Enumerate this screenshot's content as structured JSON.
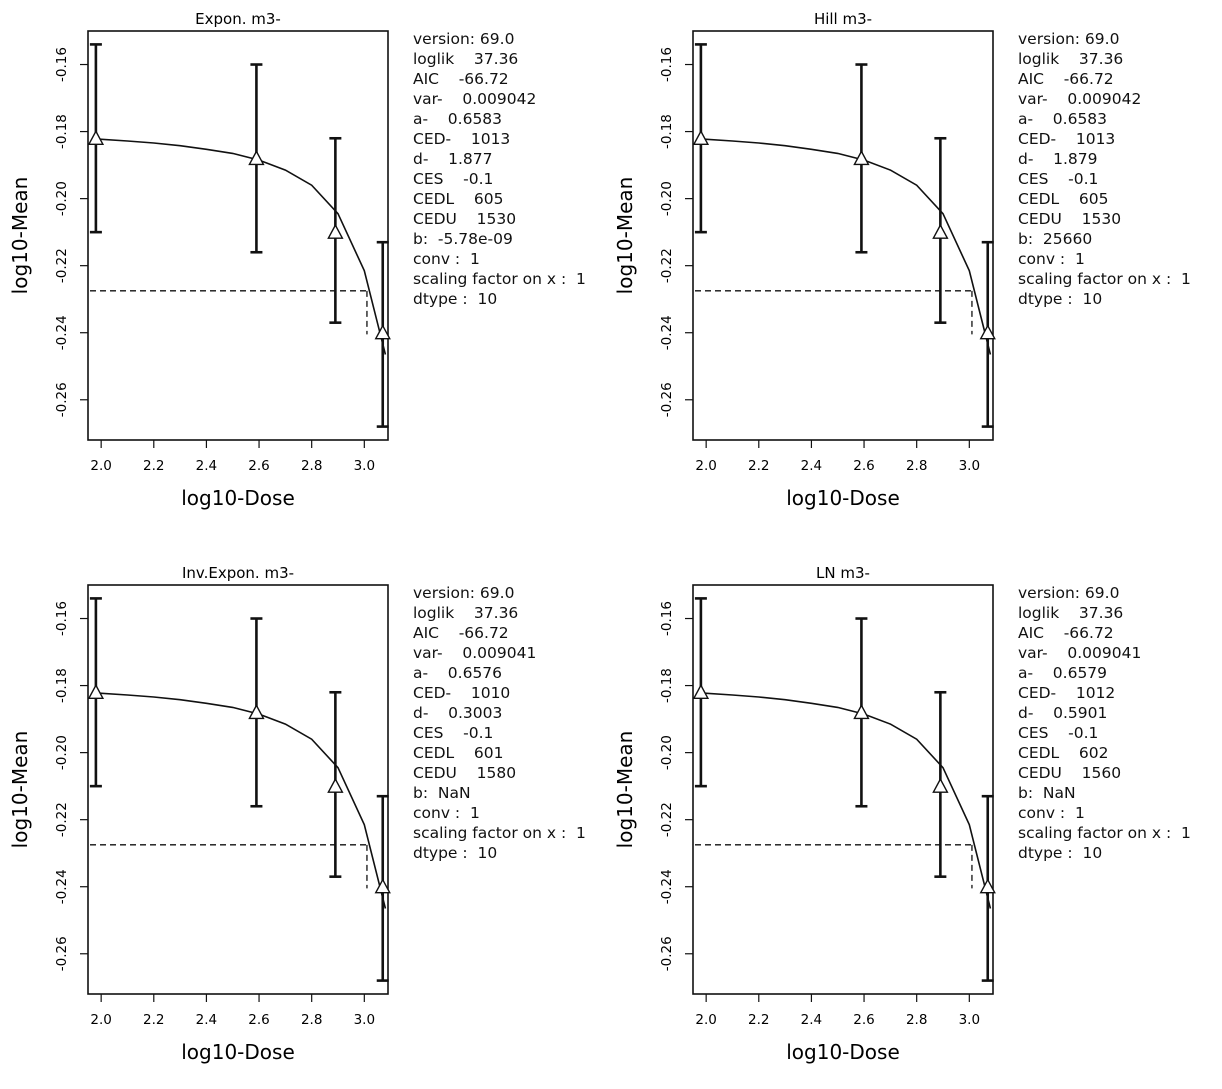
{
  "chart_data": [
    {
      "type": "line",
      "title": "Expon. m3-",
      "xlabel": "log10-Dose",
      "ylabel": "log10-Mean",
      "xlim": [
        1.95,
        3.09
      ],
      "ylim": [
        -0.272,
        -0.15
      ],
      "xticks": [
        "2.0",
        "2.2",
        "2.4",
        "2.6",
        "2.8",
        "3.0"
      ],
      "yticks": [
        "-0.16",
        "-0.18",
        "-0.20",
        "-0.22",
        "-0.24",
        "-0.26"
      ],
      "points": {
        "x": [
          1.98,
          2.59,
          2.89,
          3.07
        ],
        "y": [
          -0.182,
          -0.188,
          -0.21,
          -0.24
        ],
        "lower": [
          -0.21,
          -0.216,
          -0.237,
          -0.268
        ],
        "upper": [
          -0.154,
          -0.16,
          -0.182,
          -0.213
        ]
      },
      "curve": {
        "x": [
          1.98,
          2.1,
          2.2,
          2.3,
          2.4,
          2.5,
          2.6,
          2.7,
          2.8,
          2.9,
          3.0,
          3.08
        ],
        "y": [
          -0.1822,
          -0.1828,
          -0.1834,
          -0.1842,
          -0.1853,
          -0.1865,
          -0.1885,
          -0.1915,
          -0.196,
          -0.2045,
          -0.2215,
          -0.2465
        ]
      },
      "ced_line": {
        "y": -0.2275,
        "x": 3.01
      },
      "info": [
        "version: 69.0",
        "loglik    37.36",
        "AIC    -66.72",
        "var-    0.009042",
        "a-    0.6583",
        "CED-    1013",
        "d-    1.877",
        "CES    -0.1",
        "CEDL    605",
        "CEDU    1530",
        "b:  -5.78e-09",
        "conv :  1",
        "scaling factor on x :  1",
        "dtype :  10"
      ]
    },
    {
      "type": "line",
      "title": "Hill m3-",
      "xlabel": "log10-Dose",
      "ylabel": "log10-Mean",
      "xlim": [
        1.95,
        3.09
      ],
      "ylim": [
        -0.272,
        -0.15
      ],
      "xticks": [
        "2.0",
        "2.2",
        "2.4",
        "2.6",
        "2.8",
        "3.0"
      ],
      "yticks": [
        "-0.16",
        "-0.18",
        "-0.20",
        "-0.22",
        "-0.24",
        "-0.26"
      ],
      "points": {
        "x": [
          1.98,
          2.59,
          2.89,
          3.07
        ],
        "y": [
          -0.182,
          -0.188,
          -0.21,
          -0.24
        ],
        "lower": [
          -0.21,
          -0.216,
          -0.237,
          -0.268
        ],
        "upper": [
          -0.154,
          -0.16,
          -0.182,
          -0.213
        ]
      },
      "curve": {
        "x": [
          1.98,
          2.1,
          2.2,
          2.3,
          2.4,
          2.5,
          2.6,
          2.7,
          2.8,
          2.9,
          3.0,
          3.08
        ],
        "y": [
          -0.1822,
          -0.1828,
          -0.1834,
          -0.1842,
          -0.1853,
          -0.1865,
          -0.1885,
          -0.1915,
          -0.196,
          -0.2045,
          -0.2215,
          -0.2465
        ]
      },
      "ced_line": {
        "y": -0.2275,
        "x": 3.01
      },
      "info": [
        "version: 69.0",
        "loglik    37.36",
        "AIC    -66.72",
        "var-    0.009042",
        "a-    0.6583",
        "CED-    1013",
        "d-    1.879",
        "CES    -0.1",
        "CEDL    605",
        "CEDU    1530",
        "b:  25660",
        "conv :  1",
        "scaling factor on x :  1",
        "dtype :  10"
      ]
    },
    {
      "type": "line",
      "title": "Inv.Expon. m3-",
      "xlabel": "log10-Dose",
      "ylabel": "log10-Mean",
      "xlim": [
        1.95,
        3.09
      ],
      "ylim": [
        -0.272,
        -0.15
      ],
      "xticks": [
        "2.0",
        "2.2",
        "2.4",
        "2.6",
        "2.8",
        "3.0"
      ],
      "yticks": [
        "-0.16",
        "-0.18",
        "-0.20",
        "-0.22",
        "-0.24",
        "-0.26"
      ],
      "points": {
        "x": [
          1.98,
          2.59,
          2.89,
          3.07
        ],
        "y": [
          -0.182,
          -0.188,
          -0.21,
          -0.24
        ],
        "lower": [
          -0.21,
          -0.216,
          -0.237,
          -0.268
        ],
        "upper": [
          -0.154,
          -0.16,
          -0.182,
          -0.213
        ]
      },
      "curve": {
        "x": [
          1.98,
          2.1,
          2.2,
          2.3,
          2.4,
          2.5,
          2.6,
          2.7,
          2.8,
          2.9,
          3.0,
          3.08
        ],
        "y": [
          -0.1822,
          -0.1828,
          -0.1834,
          -0.1842,
          -0.1853,
          -0.1865,
          -0.1885,
          -0.1915,
          -0.196,
          -0.2045,
          -0.2215,
          -0.2465
        ]
      },
      "ced_line": {
        "y": -0.2275,
        "x": 3.01
      },
      "info": [
        "version: 69.0",
        "loglik    37.36",
        "AIC    -66.72",
        "var-    0.009041",
        "a-    0.6576",
        "CED-    1010",
        "d-    0.3003",
        "CES    -0.1",
        "CEDL    601",
        "CEDU    1580",
        "b:  NaN",
        "conv :  1",
        "scaling factor on x :  1",
        "dtype :  10"
      ]
    },
    {
      "type": "line",
      "title": "LN m3-",
      "xlabel": "log10-Dose",
      "ylabel": "log10-Mean",
      "xlim": [
        1.95,
        3.09
      ],
      "ylim": [
        -0.272,
        -0.15
      ],
      "xticks": [
        "2.0",
        "2.2",
        "2.4",
        "2.6",
        "2.8",
        "3.0"
      ],
      "yticks": [
        "-0.16",
        "-0.18",
        "-0.20",
        "-0.22",
        "-0.24",
        "-0.26"
      ],
      "points": {
        "x": [
          1.98,
          2.59,
          2.89,
          3.07
        ],
        "y": [
          -0.182,
          -0.188,
          -0.21,
          -0.24
        ],
        "lower": [
          -0.21,
          -0.216,
          -0.237,
          -0.268
        ],
        "upper": [
          -0.154,
          -0.16,
          -0.182,
          -0.213
        ]
      },
      "curve": {
        "x": [
          1.98,
          2.1,
          2.2,
          2.3,
          2.4,
          2.5,
          2.6,
          2.7,
          2.8,
          2.9,
          3.0,
          3.08
        ],
        "y": [
          -0.1822,
          -0.1828,
          -0.1834,
          -0.1842,
          -0.1853,
          -0.1865,
          -0.1885,
          -0.1915,
          -0.196,
          -0.2045,
          -0.2215,
          -0.2465
        ]
      },
      "ced_line": {
        "y": -0.2275,
        "x": 3.01
      },
      "info": [
        "version: 69.0",
        "loglik    37.36",
        "AIC    -66.72",
        "var-    0.009041",
        "a-    0.6579",
        "CED-    1012",
        "d-    0.5901",
        "CES    -0.1",
        "CEDL    602",
        "CEDU    1560",
        "b:  NaN",
        "conv :  1",
        "scaling factor on x :  1",
        "dtype :  10"
      ]
    }
  ]
}
